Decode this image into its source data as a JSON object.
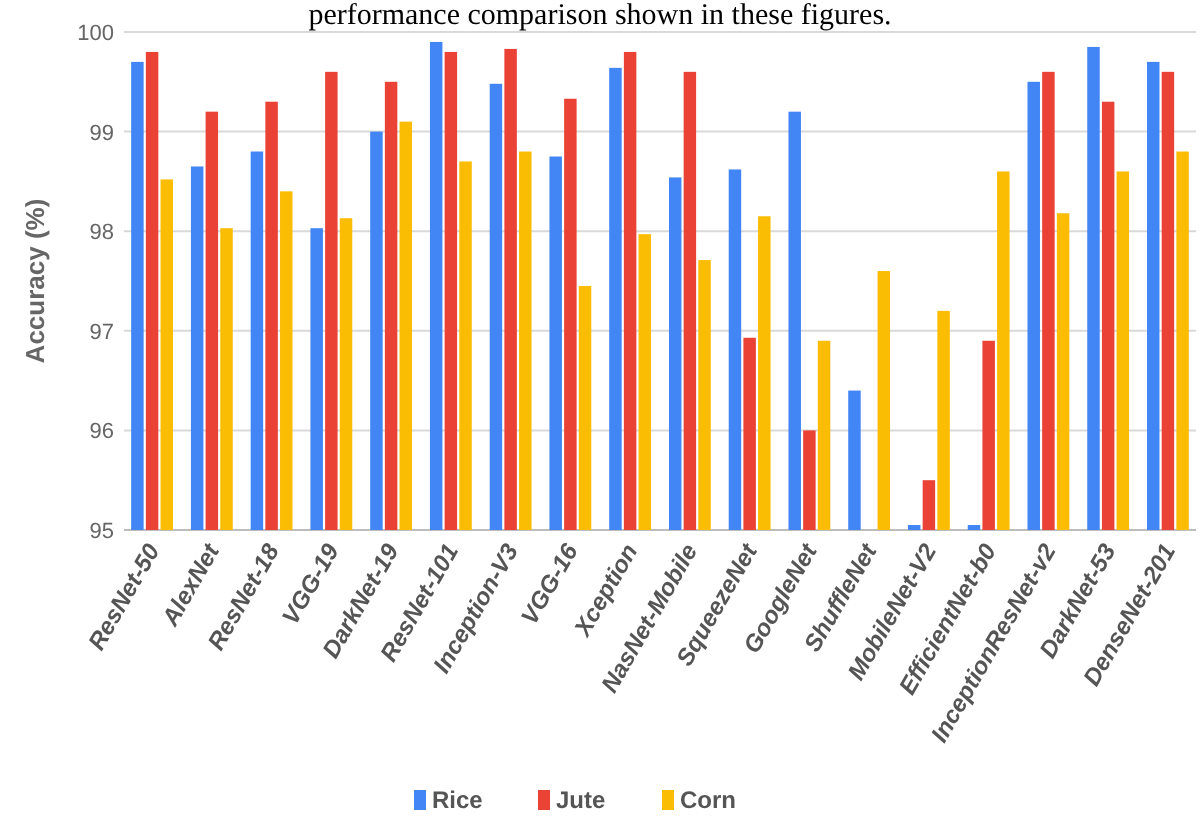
{
  "chart_data": {
    "type": "bar",
    "annotations": [
      "performance comparison shown in these figures."
    ],
    "ylabel": "Accuracy (%)",
    "categories": [
      "ResNet-50",
      "AlexNet",
      "ResNet-18",
      "VGG-19",
      "DarkNet-19",
      "ResNet-101",
      "Inception-V3",
      "VGG-16",
      "Xception",
      "NasNet-Mobile",
      "SqueezeNet",
      "GoogleNet",
      "ShuffleNet",
      "MobileNet-V2",
      "EfficientNet-b0",
      "InceptionResNet-v2",
      "DarkNet-53",
      "DenseNet-201"
    ],
    "series": [
      {
        "name": "Rice",
        "color": "#4285f4",
        "values": [
          99.7,
          98.65,
          98.8,
          98.03,
          99.0,
          99.9,
          99.48,
          98.75,
          99.64,
          98.54,
          98.62,
          99.2,
          96.4,
          95.05,
          95.05,
          99.5,
          99.85,
          99.7
        ]
      },
      {
        "name": "Jute",
        "color": "#ea4335",
        "values": [
          99.8,
          99.2,
          99.3,
          99.6,
          99.5,
          99.8,
          99.83,
          99.33,
          99.8,
          99.6,
          96.93,
          96.0,
          null,
          95.5,
          96.9,
          99.6,
          99.3,
          99.6
        ]
      },
      {
        "name": "Corn",
        "color": "#fbbc04",
        "values": [
          98.52,
          98.03,
          98.4,
          98.13,
          99.1,
          98.7,
          98.8,
          97.45,
          97.97,
          97.71,
          98.15,
          96.9,
          97.6,
          97.2,
          98.6,
          98.18,
          98.6,
          98.8
        ]
      }
    ],
    "ylim": [
      95,
      100
    ],
    "yticks": [
      95,
      96,
      97,
      98,
      99,
      100
    ],
    "grid": "y",
    "legend": "bottom"
  }
}
